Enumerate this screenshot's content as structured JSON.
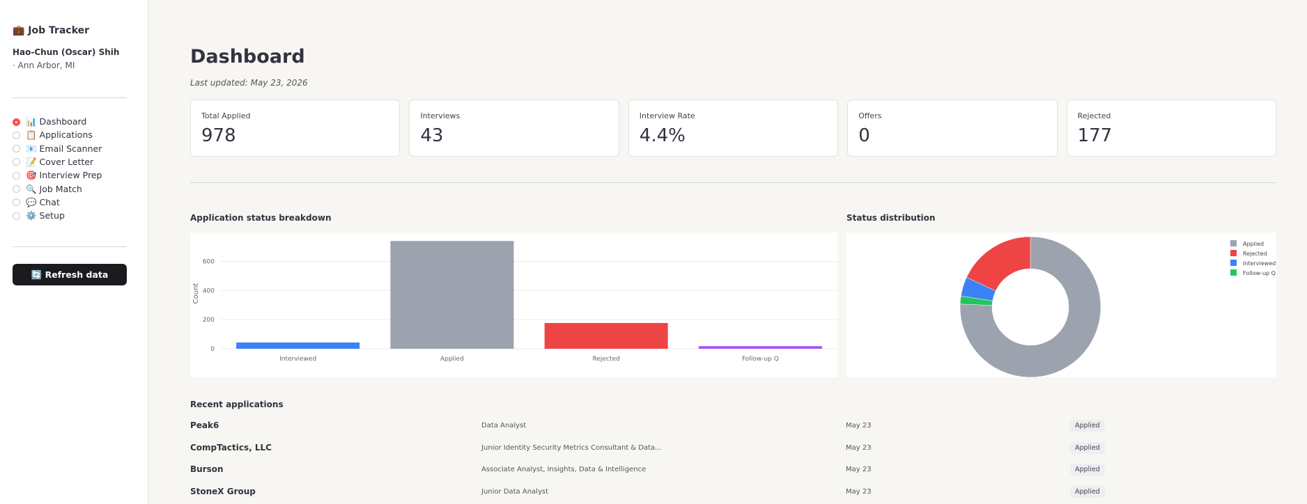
{
  "sidebar": {
    "title": "💼 Job Tracker",
    "user": "Hao-Chun (Oscar) Shih",
    "location": "· Ann Arbor, MI",
    "nav": [
      {
        "label": "📊 Dashboard"
      },
      {
        "label": "📋 Applications"
      },
      {
        "label": "📧 Email Scanner"
      },
      {
        "label": "📝 Cover Letter"
      },
      {
        "label": "🎯 Interview Prep"
      },
      {
        "label": "🔍 Job Match"
      },
      {
        "label": "💬 Chat"
      },
      {
        "label": "⚙️ Setup"
      }
    ],
    "button": "🔄 Refresh data"
  },
  "header": {
    "title": "Dashboard",
    "updated": "Last updated: May 23, 2026"
  },
  "metrics": [
    {
      "label": "Total Applied",
      "value": "978"
    },
    {
      "label": "Interviews",
      "value": "43"
    },
    {
      "label": "Interview Rate",
      "value": "4.4%"
    },
    {
      "label": "Offers",
      "value": "0"
    },
    {
      "label": "Rejected",
      "value": "177"
    }
  ],
  "chart_data": [
    {
      "type": "bar",
      "title": "Application status breakdown",
      "y_label": "Count",
      "categories": [
        "Interviewed",
        "Applied",
        "Rejected",
        "Follow-up Q"
      ],
      "values": [
        43,
        740,
        177,
        18
      ],
      "colors": [
        "#3b82f6",
        "#9ca3af",
        "#ef4444",
        "#a855f7"
      ],
      "ylim": [
        0,
        760
      ],
      "yticks": [
        0,
        200,
        400,
        600
      ],
      "grid": true
    },
    {
      "type": "pie",
      "title": "Status distribution",
      "categories": [
        "Applied",
        "Rejected",
        "Interviewed",
        "Follow-up Q"
      ],
      "values": [
        740,
        177,
        43,
        18
      ],
      "colors": [
        "#9ca3af",
        "#ef4444",
        "#3b82f6",
        "#22c55e"
      ],
      "legend": "top-right"
    }
  ],
  "recent": {
    "title": "Recent applications",
    "rows": [
      {
        "company": "Peak6",
        "role": "Data Analyst",
        "date": "May 23",
        "status": "Applied"
      },
      {
        "company": "CompTactics, LLC",
        "role": "Junior Identity Security Metrics Consultant & Data...",
        "date": "May 23",
        "status": "Applied"
      },
      {
        "company": "Burson",
        "role": "Associate Analyst, Insights, Data & Intelligence",
        "date": "May 23",
        "status": "Applied"
      },
      {
        "company": "StoneX Group",
        "role": "Junior Data Analyst",
        "date": "May 23",
        "status": "Applied"
      }
    ]
  }
}
